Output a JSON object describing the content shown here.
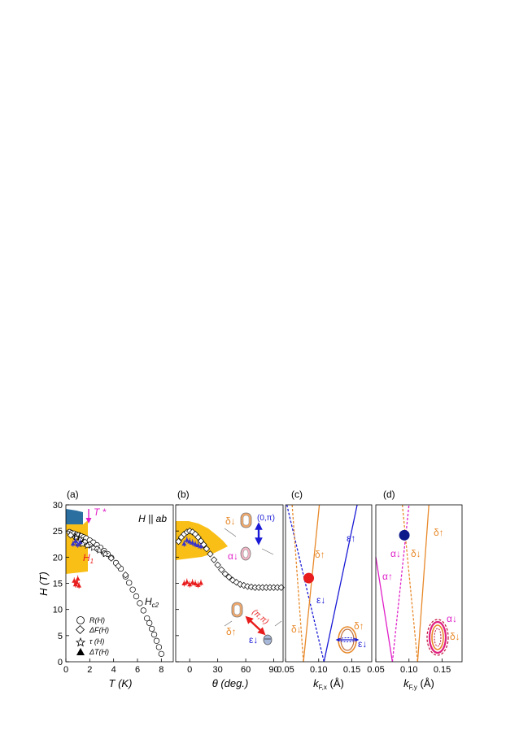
{
  "chart_data": [
    {
      "type": "scatter",
      "panel_label": "(a)",
      "annotation": "H || ab",
      "xlabel": "T (K)",
      "ylabel": "H (T)",
      "xlim": [
        0,
        9
      ],
      "ylim": [
        0,
        30
      ],
      "xticks": [
        "0",
        "2",
        "4",
        "6",
        "8"
      ],
      "yticks": [
        "0",
        "5",
        "10",
        "15",
        "20",
        "25",
        "30"
      ],
      "labels": {
        "tstar": "T *",
        "h2": "H",
        "h2_sub": "2",
        "h1": "H",
        "h1_sub": "1",
        "hc2": "H",
        "hc2_sub": "c2"
      },
      "legend": [
        {
          "marker": "circle",
          "label": "R(H)"
        },
        {
          "marker": "diamond",
          "label": "ΔF(H)"
        },
        {
          "marker": "star",
          "label": "τ (H)"
        },
        {
          "marker": "triangle",
          "label": "ΔT(H)"
        }
      ],
      "series": [
        {
          "marker": "circle",
          "x": [
            0.3,
            0.5,
            0.7,
            0.9,
            1.1,
            1.3,
            1.5,
            1.7,
            2.0,
            2.3,
            2.6,
            2.9,
            3.2,
            3.5,
            3.8,
            4.2,
            4.6,
            5.0,
            5.3,
            5.6,
            5.9,
            6.2,
            6.5,
            6.8,
            7.0,
            7.2,
            7.4,
            7.6,
            7.8,
            8.0
          ],
          "y": [
            24.8,
            24.6,
            24.5,
            24.3,
            24.2,
            24.0,
            23.8,
            23.6,
            23.2,
            22.8,
            22.3,
            21.8,
            21.2,
            20.6,
            19.9,
            18.9,
            17.8,
            16.3,
            15.1,
            13.8,
            12.5,
            11.2,
            9.8,
            8.3,
            7.4,
            6.3,
            5.2,
            4.0,
            2.8,
            1.5
          ]
        },
        {
          "marker": "diamond",
          "x": [
            0.4,
            0.8,
            1.2,
            1.6,
            2.0,
            2.6,
            3.2,
            3.8,
            4.4,
            5.0
          ],
          "y": [
            24.2,
            23.8,
            23.3,
            22.9,
            22.4,
            21.6,
            20.7,
            19.8,
            18.3,
            16.6
          ]
        },
        {
          "marker": "star",
          "x": [
            1.0,
            1.4,
            1.8,
            2.3,
            2.8,
            3.3
          ],
          "y": [
            22.8,
            22.5,
            22.2,
            21.8,
            21.3,
            20.6
          ]
        },
        {
          "marker": "triangle-red",
          "x": [
            0.7,
            0.8,
            0.9,
            1.0,
            1.1
          ],
          "y": [
            15.5,
            14.8,
            15.2,
            15.9,
            14.6
          ]
        },
        {
          "marker": "triangle-blue",
          "x": [
            0.6,
            0.8,
            1.0,
            1.2
          ],
          "y": [
            22.6,
            23.1,
            22.4,
            22.9
          ]
        }
      ]
    },
    {
      "type": "scatter",
      "panel_label": "(b)",
      "xlabel": "θ (deg.)",
      "xlim": [
        -15,
        100
      ],
      "ylim": [
        0,
        30
      ],
      "xticks": [
        "0",
        "30",
        "60",
        "90"
      ],
      "labels": {
        "d_down": "δ↓",
        "a_down": "α↓",
        "qa": "(0,π)",
        "qb": "(π,π)",
        "d_up": "δ↑",
        "e_down": "ε↓"
      },
      "series": [
        {
          "marker": "diamond",
          "x": [
            -12,
            -9,
            -6,
            -3,
            0,
            3,
            6,
            9,
            12,
            15,
            18,
            22,
            26,
            30,
            34,
            38,
            42,
            46,
            50,
            54,
            58,
            62,
            66,
            70,
            74,
            78,
            82,
            86,
            90,
            94,
            98
          ],
          "y": [
            23.0,
            23.8,
            24.4,
            24.8,
            25.0,
            24.8,
            24.4,
            23.8,
            23.1,
            22.4,
            21.6,
            20.6,
            19.5,
            18.5,
            17.6,
            16.8,
            16.2,
            15.6,
            15.2,
            14.8,
            14.6,
            14.4,
            14.3,
            14.2,
            14.2,
            14.2,
            14.2,
            14.2,
            14.2,
            14.2,
            14.2
          ]
        },
        {
          "marker": "triangle-blue",
          "x": [
            -6,
            -3,
            0,
            3,
            6,
            9,
            12
          ],
          "y": [
            22.6,
            23.3,
            23.0,
            22.8,
            22.5,
            22.3,
            22.1
          ]
        },
        {
          "marker": "triangle-red",
          "x": [
            -6,
            -3,
            0,
            3,
            6,
            9,
            12
          ],
          "y": [
            15.0,
            15.3,
            14.8,
            15.2,
            15.0,
            14.7,
            15.1
          ]
        }
      ]
    },
    {
      "type": "line",
      "panel_label": "(c)",
      "xlabel": "k",
      "xlabel_sub": "F,x",
      "xlabel_unit": " (Å)",
      "xlim": [
        0.05,
        0.18
      ],
      "ylim": [
        0,
        30
      ],
      "xticks": [
        "0.05",
        "0.10",
        "0.15"
      ],
      "labels": {
        "e_up": "ε↑",
        "d_up": "δ↑",
        "e_down": "ε↓",
        "d_down": "δ↓",
        "d_up2": "δ↑",
        "e_down2": "ε↓"
      },
      "series": [
        {
          "name": "ε↑",
          "style": "solid",
          "color": "#1a1ad6",
          "x": [
            0.108,
            0.158
          ],
          "y": [
            0,
            30
          ]
        },
        {
          "name": "ε↓",
          "style": "dashed",
          "color": "#1a1ad6",
          "x": [
            0.052,
            0.108
          ],
          "y": [
            30,
            0
          ]
        },
        {
          "name": "δ↑",
          "style": "solid",
          "color": "#e8892a",
          "x": [
            0.077,
            0.101
          ],
          "y": [
            0,
            30
          ]
        },
        {
          "name": "δ↓",
          "style": "dashed",
          "color": "#e8892a",
          "x": [
            0.06,
            0.077
          ],
          "y": [
            30,
            0
          ]
        }
      ],
      "marker": {
        "x": 0.085,
        "y": 16.0,
        "color": "#e81c1c"
      }
    },
    {
      "type": "line",
      "panel_label": "(d)",
      "xlabel": "k",
      "xlabel_sub": "F,y",
      "xlabel_unit": " (Å)",
      "xlim": [
        0.05,
        0.18
      ],
      "ylim": [
        0,
        30
      ],
      "xticks": [
        "0.05",
        "0.10",
        "0.15"
      ],
      "labels": {
        "d_up": "δ↑",
        "a_down": "α↓",
        "d_down": "δ↓",
        "a_up": "α↑",
        "a_down2": "α↓",
        "d_down2": "δ↓"
      },
      "series": [
        {
          "name": "α↑",
          "style": "solid",
          "color": "#e020c8",
          "x": [
            0.05,
            0.075
          ],
          "y": [
            20,
            0
          ]
        },
        {
          "name": "α↓",
          "style": "dashed",
          "color": "#e020c8",
          "x": [
            0.075,
            0.1
          ],
          "y": [
            0,
            30
          ]
        },
        {
          "name": "δ↑",
          "style": "solid",
          "color": "#e8892a",
          "x": [
            0.113,
            0.13
          ],
          "y": [
            0,
            30
          ]
        },
        {
          "name": "δ↓",
          "style": "dashed",
          "color": "#e8892a",
          "x": [
            0.09,
            0.113
          ],
          "y": [
            30,
            0
          ]
        }
      ],
      "marker": {
        "x": 0.093,
        "y": 24.2,
        "color": "#0d1a8a"
      }
    }
  ]
}
